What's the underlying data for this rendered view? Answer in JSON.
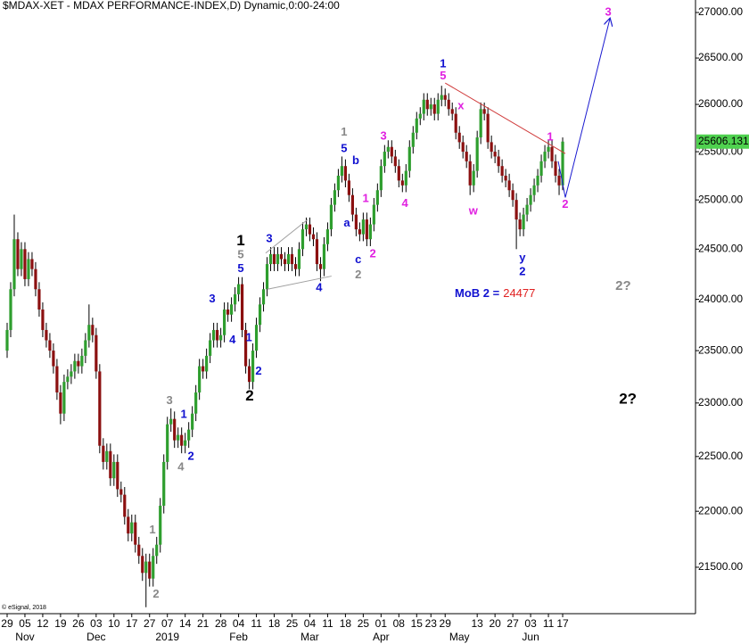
{
  "chart_data": {
    "type": "candlestick",
    "title": "$MDAX-XET - MDAX PERFORMANCE-INDEX,D) Dynamic,0:00-24:00",
    "copyright": "© eSignal, 2018",
    "log_scale": true,
    "up_color": "#2e9e2e",
    "down_color": "#8b1010",
    "xlim": [
      -2,
      193.3
    ],
    "ylim": [
      21094,
      27139
    ],
    "yticks": [
      {
        "value": 21500,
        "label": "21500.00"
      },
      {
        "value": 22000,
        "label": "22000.00"
      },
      {
        "value": 22500,
        "label": "22500.00"
      },
      {
        "value": 23000,
        "label": "23000.00"
      },
      {
        "value": 23500,
        "label": "23500.00"
      },
      {
        "value": 24000,
        "label": "24000.00"
      },
      {
        "value": 24500,
        "label": "24500.00"
      },
      {
        "value": 25000,
        "label": "25000.00"
      },
      {
        "value": 25500,
        "label": "25500.00"
      },
      {
        "value": 26000,
        "label": "26000.00"
      },
      {
        "value": 26500,
        "label": "26500.00"
      },
      {
        "value": 27000,
        "label": "27000.00"
      }
    ],
    "xticks": [
      {
        "value": 0,
        "label": "29"
      },
      {
        "value": 5,
        "label": "05"
      },
      {
        "value": 10,
        "label": "12"
      },
      {
        "value": 15,
        "label": "19"
      },
      {
        "value": 20,
        "label": "26"
      },
      {
        "value": 25,
        "label": "03"
      },
      {
        "value": 30,
        "label": "10"
      },
      {
        "value": 35,
        "label": "17"
      },
      {
        "value": 40,
        "label": "27"
      },
      {
        "value": 45,
        "label": "07"
      },
      {
        "value": 50,
        "label": "14"
      },
      {
        "value": 55,
        "label": "21"
      },
      {
        "value": 60,
        "label": "28"
      },
      {
        "value": 65,
        "label": "04"
      },
      {
        "value": 70,
        "label": "11"
      },
      {
        "value": 75,
        "label": "18"
      },
      {
        "value": 80,
        "label": "25"
      },
      {
        "value": 85,
        "label": "04"
      },
      {
        "value": 90,
        "label": "11"
      },
      {
        "value": 95,
        "label": "18"
      },
      {
        "value": 100,
        "label": "25"
      },
      {
        "value": 105,
        "label": "01"
      },
      {
        "value": 110,
        "label": "08"
      },
      {
        "value": 115,
        "label": "15"
      },
      {
        "value": 119,
        "label": "23"
      },
      {
        "value": 123,
        "label": "29"
      },
      {
        "value": 132,
        "label": "13"
      },
      {
        "value": 137,
        "label": "20"
      },
      {
        "value": 142,
        "label": "27"
      },
      {
        "value": 147,
        "label": "03"
      },
      {
        "value": 152,
        "label": "11"
      },
      {
        "value": 156,
        "label": "17"
      }
    ],
    "month_labels": [
      {
        "value": 5,
        "label": "Nov"
      },
      {
        "value": 25,
        "label": "Dec"
      },
      {
        "value": 45,
        "label": "2019"
      },
      {
        "value": 65,
        "label": "Feb"
      },
      {
        "value": 85,
        "label": "Mar"
      },
      {
        "value": 105,
        "label": "Apr"
      },
      {
        "value": 127,
        "label": "May"
      },
      {
        "value": 147,
        "label": "Jun"
      }
    ],
    "open": [
      23500,
      23700,
      24100,
      24600,
      24300,
      24500,
      24200,
      24400,
      24300,
      24100,
      23900,
      23700,
      23600,
      23500,
      23350,
      23100,
      22900,
      23200,
      23250,
      23300,
      23400,
      23350,
      23450,
      23600,
      23750,
      23650,
      23300,
      22600,
      22450,
      22550,
      22300,
      22450,
      22200,
      22150,
      21950,
      21800,
      21900,
      21700,
      21600,
      21450,
      21550,
      21400,
      21600,
      21700,
      22050,
      22450,
      22800,
      22850,
      22650,
      22700,
      22600,
      22650,
      22750,
      22900,
      23100,
      23350,
      23300,
      23450,
      23600,
      23700,
      23600,
      23650,
      23900,
      23850,
      23950,
      24050,
      24150,
      23700,
      23350,
      23200,
      23500,
      23750,
      23950,
      24100,
      24350,
      24450,
      24350,
      24450,
      24400,
      24350,
      24450,
      24350,
      24300,
      24500,
      24700,
      24750,
      24650,
      24600,
      24350,
      24300,
      24550,
      24700,
      24950,
      25100,
      25250,
      25350,
      25200,
      25050,
      24850,
      24700,
      24650,
      24800,
      24600,
      24750,
      24950,
      25100,
      25350,
      25500,
      25550,
      25450,
      25350,
      25200,
      25150,
      25300,
      25550,
      25700,
      25850,
      25900,
      26050,
      25950,
      26000,
      25900,
      26050,
      26100,
      26050,
      25950,
      25900,
      25700,
      25600,
      25500,
      25400,
      25150,
      25300,
      25650,
      25950,
      25900,
      25600,
      25500,
      25450,
      25350,
      25250,
      25200,
      25100,
      25000,
      24800,
      24700,
      24850,
      24950,
      25050,
      25150,
      25250,
      25400,
      25500,
      25550,
      25400,
      25250,
      25150
    ],
    "high": [
      23770,
      24170,
      24850,
      24670,
      24570,
      24570,
      24470,
      24470,
      24370,
      24170,
      23970,
      23770,
      23670,
      23570,
      23420,
      23170,
      23270,
      23320,
      23370,
      23470,
      23470,
      23520,
      23670,
      23950,
      23820,
      23720,
      23370,
      22670,
      22620,
      22620,
      22520,
      22520,
      22270,
      22220,
      22020,
      21970,
      21970,
      21770,
      21670,
      21620,
      21620,
      21670,
      21770,
      22120,
      22520,
      22870,
      22950,
      22920,
      22770,
      22770,
      22720,
      22820,
      22970,
      23170,
      23420,
      23420,
      23520,
      23670,
      23770,
      23770,
      23720,
      23970,
      23970,
      24020,
      24120,
      24220,
      24220,
      23770,
      23420,
      23570,
      23820,
      24020,
      24170,
      24420,
      24520,
      24520,
      24520,
      24520,
      24470,
      24520,
      24520,
      24420,
      24570,
      24770,
      24820,
      24820,
      24720,
      24670,
      24420,
      24620,
      24770,
      25020,
      25170,
      25320,
      25450,
      25420,
      25270,
      25120,
      24920,
      24770,
      24870,
      24870,
      24820,
      25020,
      25170,
      25420,
      25570,
      25620,
      25620,
      25520,
      25420,
      25270,
      25370,
      25620,
      25770,
      25920,
      25970,
      26120,
      26120,
      26070,
      26070,
      26120,
      26200,
      26170,
      26120,
      26020,
      25970,
      25770,
      25670,
      25570,
      25470,
      25370,
      25720,
      26020,
      26020,
      25970,
      25670,
      25570,
      25520,
      25420,
      25320,
      25270,
      25170,
      25070,
      24870,
      24920,
      25020,
      25120,
      25220,
      25320,
      25470,
      25570,
      25620,
      25620,
      25470,
      25320,
      25650
    ],
    "low": [
      23430,
      23630,
      24030,
      24230,
      24230,
      24130,
      24130,
      24230,
      24030,
      23830,
      23630,
      23530,
      23430,
      23280,
      23030,
      22800,
      22830,
      23130,
      23180,
      23230,
      23280,
      23280,
      23380,
      23530,
      23580,
      23230,
      22530,
      22380,
      22380,
      22230,
      22230,
      22130,
      22080,
      21880,
      21730,
      21730,
      21630,
      21530,
      21380,
      21150,
      21330,
      21330,
      21530,
      21630,
      21980,
      22380,
      22730,
      22580,
      22580,
      22530,
      22530,
      22580,
      22680,
      22830,
      23030,
      23230,
      23230,
      23380,
      23530,
      23530,
      23530,
      23580,
      23780,
      23780,
      23880,
      23980,
      23630,
      23280,
      23130,
      23130,
      23430,
      23680,
      23880,
      24030,
      24280,
      24280,
      24280,
      24330,
      24280,
      24280,
      24280,
      24230,
      24230,
      24430,
      24630,
      24580,
      24530,
      24280,
      24180,
      24230,
      24480,
      24630,
      24880,
      25030,
      25180,
      25130,
      24980,
      24780,
      24630,
      24580,
      24580,
      24530,
      24530,
      24680,
      24880,
      25030,
      25280,
      25430,
      25380,
      25280,
      25130,
      25080,
      25080,
      25230,
      25480,
      25630,
      25780,
      25830,
      25880,
      25880,
      25830,
      25830,
      25980,
      25980,
      25880,
      25830,
      25630,
      25530,
      25430,
      25330,
      25050,
      25080,
      25230,
      25580,
      25830,
      25530,
      25430,
      25380,
      25280,
      25180,
      25130,
      25030,
      24930,
      24500,
      24630,
      24630,
      24780,
      24880,
      24980,
      25080,
      25180,
      25330,
      25430,
      25330,
      25180,
      25050,
      25100
    ],
    "close": [
      23700,
      24100,
      24600,
      24300,
      24500,
      24200,
      24400,
      24300,
      24100,
      23900,
      23700,
      23600,
      23500,
      23350,
      23100,
      22900,
      23200,
      23250,
      23300,
      23400,
      23350,
      23450,
      23600,
      23750,
      23650,
      23300,
      22600,
      22450,
      22550,
      22300,
      22450,
      22200,
      22150,
      21950,
      21800,
      21900,
      21700,
      21600,
      21450,
      21550,
      21400,
      21600,
      21700,
      22050,
      22450,
      22800,
      22850,
      22650,
      22700,
      22600,
      22650,
      22750,
      22900,
      23100,
      23350,
      23300,
      23450,
      23600,
      23700,
      23600,
      23650,
      23900,
      23850,
      23950,
      24050,
      24150,
      23700,
      23350,
      23200,
      23500,
      23750,
      23950,
      24100,
      24350,
      24450,
      24350,
      24450,
      24400,
      24350,
      24450,
      24350,
      24300,
      24500,
      24700,
      24750,
      24650,
      24600,
      24350,
      24300,
      24550,
      24700,
      24950,
      25100,
      25250,
      25350,
      25200,
      25050,
      24850,
      24700,
      24650,
      24800,
      24600,
      24750,
      24950,
      25100,
      25350,
      25500,
      25550,
      25450,
      25350,
      25200,
      25150,
      25300,
      25550,
      25700,
      25850,
      25900,
      26050,
      25950,
      26000,
      25900,
      26050,
      26100,
      26050,
      25950,
      25900,
      25700,
      25600,
      25500,
      25400,
      25150,
      25300,
      25650,
      25950,
      25900,
      25600,
      25500,
      25450,
      25350,
      25250,
      25200,
      25100,
      25000,
      24800,
      24700,
      24850,
      24950,
      25050,
      25150,
      25250,
      25400,
      25500,
      25550,
      25400,
      25250,
      25150,
      25606.131
    ],
    "last_price_color": "#4fd14f",
    "lines": [
      {
        "color": "#d03c3c",
        "x": [
          123,
          156.75
        ],
        "y": [
          26230,
          25480
        ]
      },
      {
        "color": "#1a1ad0",
        "x": [
          154.75,
          156.75,
          169.25
        ],
        "y": [
          25400,
          25025,
          26930
        ],
        "arrow": true
      },
      {
        "color": "#a0a0a0",
        "x": [
          72.6,
          84.4
        ],
        "y": [
          24460,
          24800
        ]
      },
      {
        "color": "#a0a0a0",
        "x": [
          73.1,
          91.1
        ],
        "y": [
          24100,
          24230
        ]
      }
    ],
    "annotations": [
      {
        "text": "3",
        "color": "#e020e0",
        "x": 168.8,
        "y": 27000
      },
      {
        "text": "1",
        "color": "#1010d0",
        "x": 122.4,
        "y": 26430
      },
      {
        "text": "5",
        "color": "#e020e0",
        "x": 122.4,
        "y": 26300
      },
      {
        "text": "x",
        "color": "#e020e0",
        "x": 127.4,
        "y": 25980
      },
      {
        "text": "1",
        "color": "#e020e0",
        "x": 152.5,
        "y": 25650
      },
      {
        "text": "2",
        "color": "#e020e0",
        "x": 156.7,
        "y": 24950
      },
      {
        "text": "w",
        "color": "#e020e0",
        "x": 130.9,
        "y": 24880
      },
      {
        "text": "y",
        "color": "#1010d0",
        "x": 144.7,
        "y": 24410
      },
      {
        "text": "2",
        "color": "#1010d0",
        "x": 144.7,
        "y": 24270
      },
      {
        "text": "2?",
        "color": "#888888",
        "x": 173,
        "y": 24130
      },
      {
        "text": "2?",
        "color": "#000000",
        "x": 174.3,
        "y": 23030
      },
      {
        "text": "3",
        "color": "#e020e0",
        "x": 105.7,
        "y": 25660
      },
      {
        "text": "4",
        "color": "#e020e0",
        "x": 111.7,
        "y": 24960
      },
      {
        "text": "1",
        "color": "#e020e0",
        "x": 100.7,
        "y": 25010
      },
      {
        "text": "2",
        "color": "#e020e0",
        "x": 102.7,
        "y": 24450
      },
      {
        "text": "1",
        "color": "#888888",
        "x": 94.6,
        "y": 25700
      },
      {
        "text": "5",
        "color": "#1010d0",
        "x": 94.6,
        "y": 25530
      },
      {
        "text": "b",
        "color": "#1010d0",
        "x": 97.9,
        "y": 25400
      },
      {
        "text": "a",
        "color": "#1010d0",
        "x": 95.4,
        "y": 24760
      },
      {
        "text": "c",
        "color": "#1010d0",
        "x": 98.6,
        "y": 24390
      },
      {
        "text": "2",
        "color": "#888888",
        "x": 98.6,
        "y": 24240
      },
      {
        "text": "4",
        "color": "#1010d0",
        "x": 87.6,
        "y": 24110
      },
      {
        "text": "3",
        "color": "#1010d0",
        "x": 73.6,
        "y": 24600
      },
      {
        "text": "1",
        "color": "#000000",
        "x": 65.6,
        "y": 24580
      },
      {
        "text": "5",
        "color": "#888888",
        "x": 65.6,
        "y": 24440
      },
      {
        "text": "5",
        "color": "#1010d0",
        "x": 65.6,
        "y": 24300
      },
      {
        "text": "3",
        "color": "#1010d0",
        "x": 57.6,
        "y": 24000
      },
      {
        "text": "4",
        "color": "#1010d0",
        "x": 63.3,
        "y": 23600
      },
      {
        "text": "1",
        "color": "#1010d0",
        "x": 67.9,
        "y": 23620
      },
      {
        "text": "2",
        "color": "#1010d0",
        "x": 70.6,
        "y": 23300
      },
      {
        "text": "2",
        "color": "#000000",
        "x": 68.1,
        "y": 23060
      },
      {
        "text": "3",
        "color": "#888888",
        "x": 45.6,
        "y": 23020
      },
      {
        "text": "1",
        "color": "#1010d0",
        "x": 49.6,
        "y": 22890
      },
      {
        "text": "2",
        "color": "#1010d0",
        "x": 51.6,
        "y": 22500
      },
      {
        "text": "4",
        "color": "#888888",
        "x": 48.8,
        "y": 22400
      },
      {
        "text": "1",
        "color": "#888888",
        "x": 40.8,
        "y": 21830
      },
      {
        "text": "2",
        "color": "#888888",
        "x": 41.8,
        "y": 21260
      }
    ],
    "mob": {
      "text": "MoB 2 =",
      "value": 24477,
      "x": 125.7,
      "y": 24050,
      "color": "#1010d0",
      "value_color": "#e02020"
    }
  }
}
